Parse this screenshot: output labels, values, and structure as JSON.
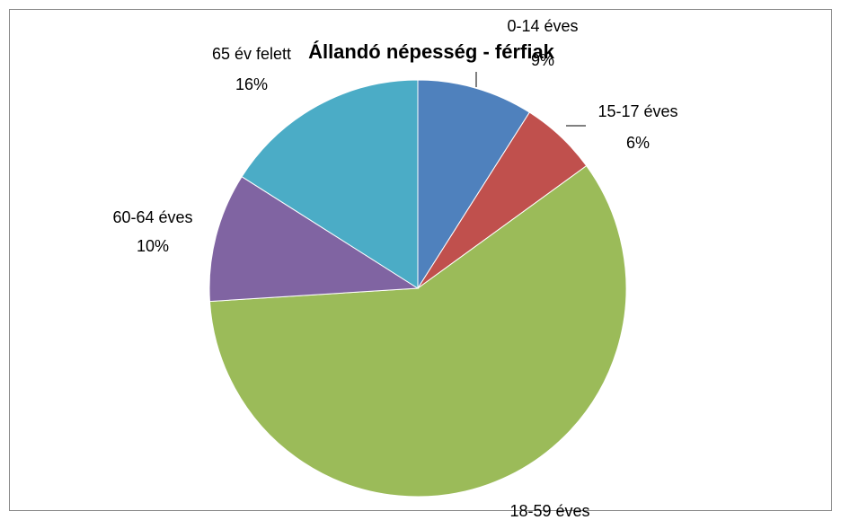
{
  "chart_data": {
    "type": "pie",
    "title": "Állandó népesség - férfiak",
    "categories": [
      "0-14 éves",
      "15-17 éves",
      "18-59 éves",
      "60-64 éves",
      "65 év felett"
    ],
    "values": [
      9,
      6,
      59,
      10,
      16
    ],
    "value_labels": [
      "9%",
      "6%",
      null,
      "10%",
      "16%"
    ],
    "colors": [
      "#4f81bd",
      "#c0504d",
      "#9bbb59",
      "#8064a2",
      "#4bacc6"
    ]
  }
}
